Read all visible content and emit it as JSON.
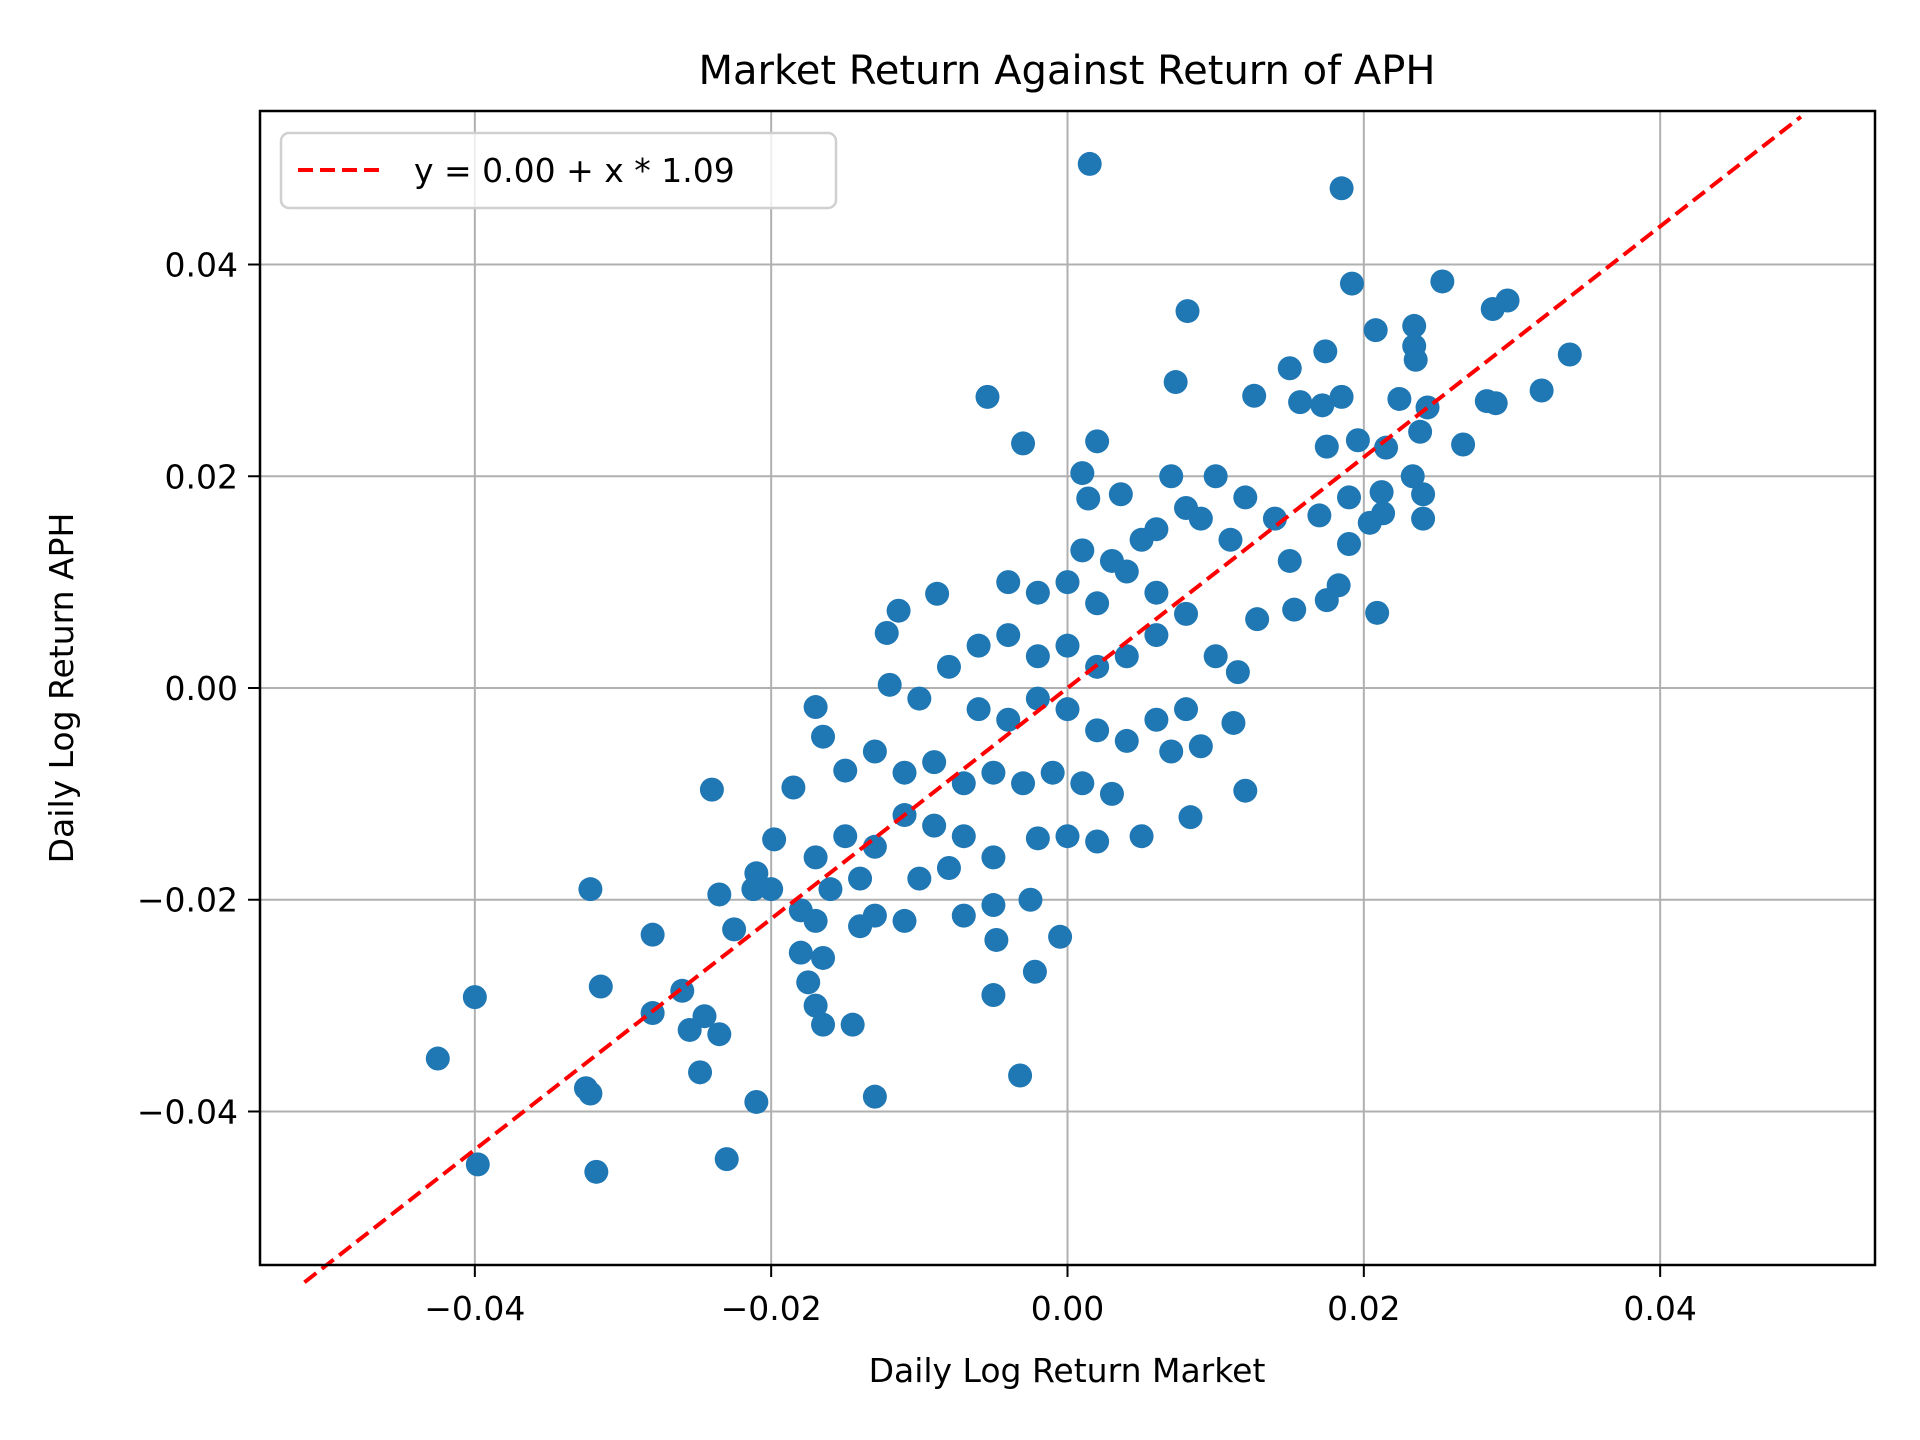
{
  "chart_data": {
    "type": "scatter",
    "title": "Market Return Against Return of APH",
    "xlabel": "Daily Log Return Market",
    "ylabel": "Daily Log Return APH",
    "xlim": [
      -0.0545,
      0.0545
    ],
    "ylim": [
      -0.0545,
      0.0545
    ],
    "grid": true,
    "x_ticks": [
      -0.04,
      -0.02,
      0.0,
      0.02,
      0.04
    ],
    "y_ticks": [
      -0.04,
      -0.02,
      0.0,
      0.02,
      0.04
    ],
    "x_tick_labels": [
      "−0.04",
      "−0.02",
      "0.00",
      "0.02",
      "0.04"
    ],
    "y_tick_labels": [
      "−0.04",
      "−0.02",
      "0.00",
      "0.02",
      "0.04"
    ],
    "legend": {
      "position": "upper left",
      "entries": [
        {
          "label": "y = 0.00 + x * 1.09",
          "style": "dashed",
          "color": "#ff0000"
        }
      ]
    },
    "regression": {
      "intercept": 0.0,
      "slope": 1.09
    },
    "series": [
      {
        "name": "daily returns",
        "color": "#1f77b4",
        "points": [
          [
            0.0015,
            0.0495
          ],
          [
            0.0185,
            0.0472
          ],
          [
            0.0253,
            0.0384
          ],
          [
            0.0192,
            0.0382
          ],
          [
            0.0297,
            0.0366
          ],
          [
            0.0287,
            0.0358
          ],
          [
            0.0081,
            0.0356
          ],
          [
            0.0208,
            0.0338
          ],
          [
            0.0234,
            0.0342
          ],
          [
            0.0234,
            0.0323
          ],
          [
            0.0235,
            0.031
          ],
          [
            0.0339,
            0.0315
          ],
          [
            0.0174,
            0.0318
          ],
          [
            0.015,
            0.0302
          ],
          [
            0.0073,
            0.0289
          ],
          [
            0.032,
            0.0281
          ],
          [
            0.0126,
            0.0276
          ],
          [
            0.0185,
            0.0275
          ],
          [
            0.0157,
            0.027
          ],
          [
            0.0172,
            0.0267
          ],
          [
            0.0283,
            0.0271
          ],
          [
            0.0289,
            0.0269
          ],
          [
            0.0224,
            0.0273
          ],
          [
            0.0243,
            0.0265
          ],
          [
            -0.0054,
            0.0275
          ],
          [
            -0.003,
            0.0231
          ],
          [
            0.002,
            0.0233
          ],
          [
            0.0267,
            0.023
          ],
          [
            0.0196,
            0.0234
          ],
          [
            0.0215,
            0.0227
          ],
          [
            0.0175,
            0.0228
          ],
          [
            0.0238,
            0.0242
          ],
          [
            0.001,
            0.0203
          ],
          [
            0.0014,
            0.0179
          ],
          [
            0.0036,
            0.0183
          ],
          [
            0.0233,
            0.02
          ],
          [
            0.024,
            0.0183
          ],
          [
            0.0212,
            0.0185
          ],
          [
            0.019,
            0.018
          ],
          [
            0.0213,
            0.0165
          ],
          [
            0.024,
            0.016
          ],
          [
            0.0204,
            0.0156
          ],
          [
            0.019,
            0.0136
          ],
          [
            0.017,
            0.0163
          ],
          [
            0.006,
            0.015
          ],
          [
            0.008,
            0.017
          ],
          [
            0.01,
            0.02
          ],
          [
            0.012,
            0.018
          ],
          [
            0.014,
            0.016
          ],
          [
            0.007,
            0.02
          ],
          [
            0.009,
            0.016
          ],
          [
            0.011,
            0.014
          ],
          [
            0.005,
            0.014
          ],
          [
            0.003,
            0.012
          ],
          [
            0.001,
            0.013
          ],
          [
            0.015,
            0.012
          ],
          [
            -0.004,
            0.01
          ],
          [
            -0.002,
            0.009
          ],
          [
            0.0,
            0.01
          ],
          [
            0.002,
            0.008
          ],
          [
            0.004,
            0.011
          ],
          [
            0.006,
            0.009
          ],
          [
            0.008,
            0.007
          ],
          [
            -0.0088,
            0.0089
          ],
          [
            -0.0114,
            0.0073
          ],
          [
            -0.0122,
            0.0052
          ],
          [
            0.0153,
            0.0074
          ],
          [
            0.0183,
            0.0097
          ],
          [
            0.0209,
            0.0071
          ],
          [
            0.0128,
            0.0065
          ],
          [
            0.0175,
            0.0083
          ],
          [
            -0.006,
            0.004
          ],
          [
            -0.008,
            0.002
          ],
          [
            -0.004,
            0.005
          ],
          [
            -0.002,
            0.003
          ],
          [
            0.0,
            0.004
          ],
          [
            0.002,
            0.002
          ],
          [
            0.004,
            0.003
          ],
          [
            0.006,
            0.005
          ],
          [
            0.01,
            0.003
          ],
          [
            0.0115,
            0.0015
          ],
          [
            0.0112,
            -0.0033
          ],
          [
            0.008,
            -0.002
          ],
          [
            0.006,
            -0.003
          ],
          [
            -0.012,
            0.0003
          ],
          [
            -0.01,
            -0.001
          ],
          [
            -0.006,
            -0.002
          ],
          [
            -0.004,
            -0.003
          ],
          [
            -0.002,
            -0.001
          ],
          [
            0.0,
            -0.002
          ],
          [
            0.002,
            -0.004
          ],
          [
            0.004,
            -0.005
          ],
          [
            0.007,
            -0.006
          ],
          [
            0.009,
            -0.0055
          ],
          [
            -0.017,
            -0.0018
          ],
          [
            -0.0165,
            -0.0046
          ],
          [
            -0.013,
            -0.006
          ],
          [
            -0.011,
            -0.008
          ],
          [
            -0.009,
            -0.007
          ],
          [
            -0.007,
            -0.009
          ],
          [
            -0.005,
            -0.008
          ],
          [
            -0.003,
            -0.009
          ],
          [
            -0.001,
            -0.008
          ],
          [
            0.001,
            -0.009
          ],
          [
            0.003,
            -0.01
          ],
          [
            0.012,
            -0.0097
          ],
          [
            0.0083,
            -0.0122
          ],
          [
            0.005,
            -0.014
          ],
          [
            0.002,
            -0.0145
          ],
          [
            0.0,
            -0.014
          ],
          [
            -0.002,
            -0.0142
          ],
          [
            -0.015,
            -0.0078
          ],
          [
            -0.0185,
            -0.0094
          ],
          [
            -0.011,
            -0.012
          ],
          [
            -0.009,
            -0.013
          ],
          [
            -0.007,
            -0.014
          ],
          [
            -0.005,
            -0.016
          ],
          [
            -0.013,
            -0.015
          ],
          [
            -0.015,
            -0.014
          ],
          [
            -0.017,
            -0.016
          ],
          [
            -0.024,
            -0.0096
          ],
          [
            -0.0198,
            -0.0143
          ],
          [
            -0.01,
            -0.018
          ],
          [
            -0.008,
            -0.017
          ],
          [
            -0.014,
            -0.018
          ],
          [
            -0.016,
            -0.019
          ],
          [
            -0.018,
            -0.021
          ],
          [
            -0.02,
            -0.019
          ],
          [
            -0.021,
            -0.0175
          ],
          [
            -0.0212,
            -0.019
          ],
          [
            -0.0235,
            -0.0195
          ],
          [
            -0.0322,
            -0.019
          ],
          [
            -0.011,
            -0.022
          ],
          [
            -0.013,
            -0.0215
          ],
          [
            -0.014,
            -0.0225
          ],
          [
            -0.017,
            -0.022
          ],
          [
            -0.005,
            -0.0205
          ],
          [
            -0.0025,
            -0.02
          ],
          [
            -0.007,
            -0.0215
          ],
          [
            -0.0005,
            -0.0235
          ],
          [
            -0.0048,
            -0.0238
          ],
          [
            -0.0225,
            -0.0228
          ],
          [
            -0.028,
            -0.0233
          ],
          [
            -0.018,
            -0.025
          ],
          [
            -0.0165,
            -0.0255
          ],
          [
            -0.0022,
            -0.0268
          ],
          [
            -0.0315,
            -0.0282
          ],
          [
            -0.026,
            -0.0286
          ],
          [
            -0.0175,
            -0.0278
          ],
          [
            -0.005,
            -0.029
          ],
          [
            -0.028,
            -0.0307
          ],
          [
            -0.0245,
            -0.031
          ],
          [
            -0.017,
            -0.03
          ],
          [
            -0.0165,
            -0.0318
          ],
          [
            -0.0145,
            -0.0318
          ],
          [
            -0.0255,
            -0.0323
          ],
          [
            -0.0235,
            -0.0327
          ],
          [
            -0.04,
            -0.0292
          ],
          [
            -0.0425,
            -0.035
          ],
          [
            -0.0248,
            -0.0363
          ],
          [
            -0.0032,
            -0.0366
          ],
          [
            -0.0325,
            -0.0378
          ],
          [
            -0.0322,
            -0.0383
          ],
          [
            -0.021,
            -0.0391
          ],
          [
            -0.013,
            -0.0386
          ],
          [
            -0.023,
            -0.0445
          ],
          [
            -0.0398,
            -0.045
          ],
          [
            -0.0318,
            -0.0457
          ]
        ]
      }
    ]
  }
}
